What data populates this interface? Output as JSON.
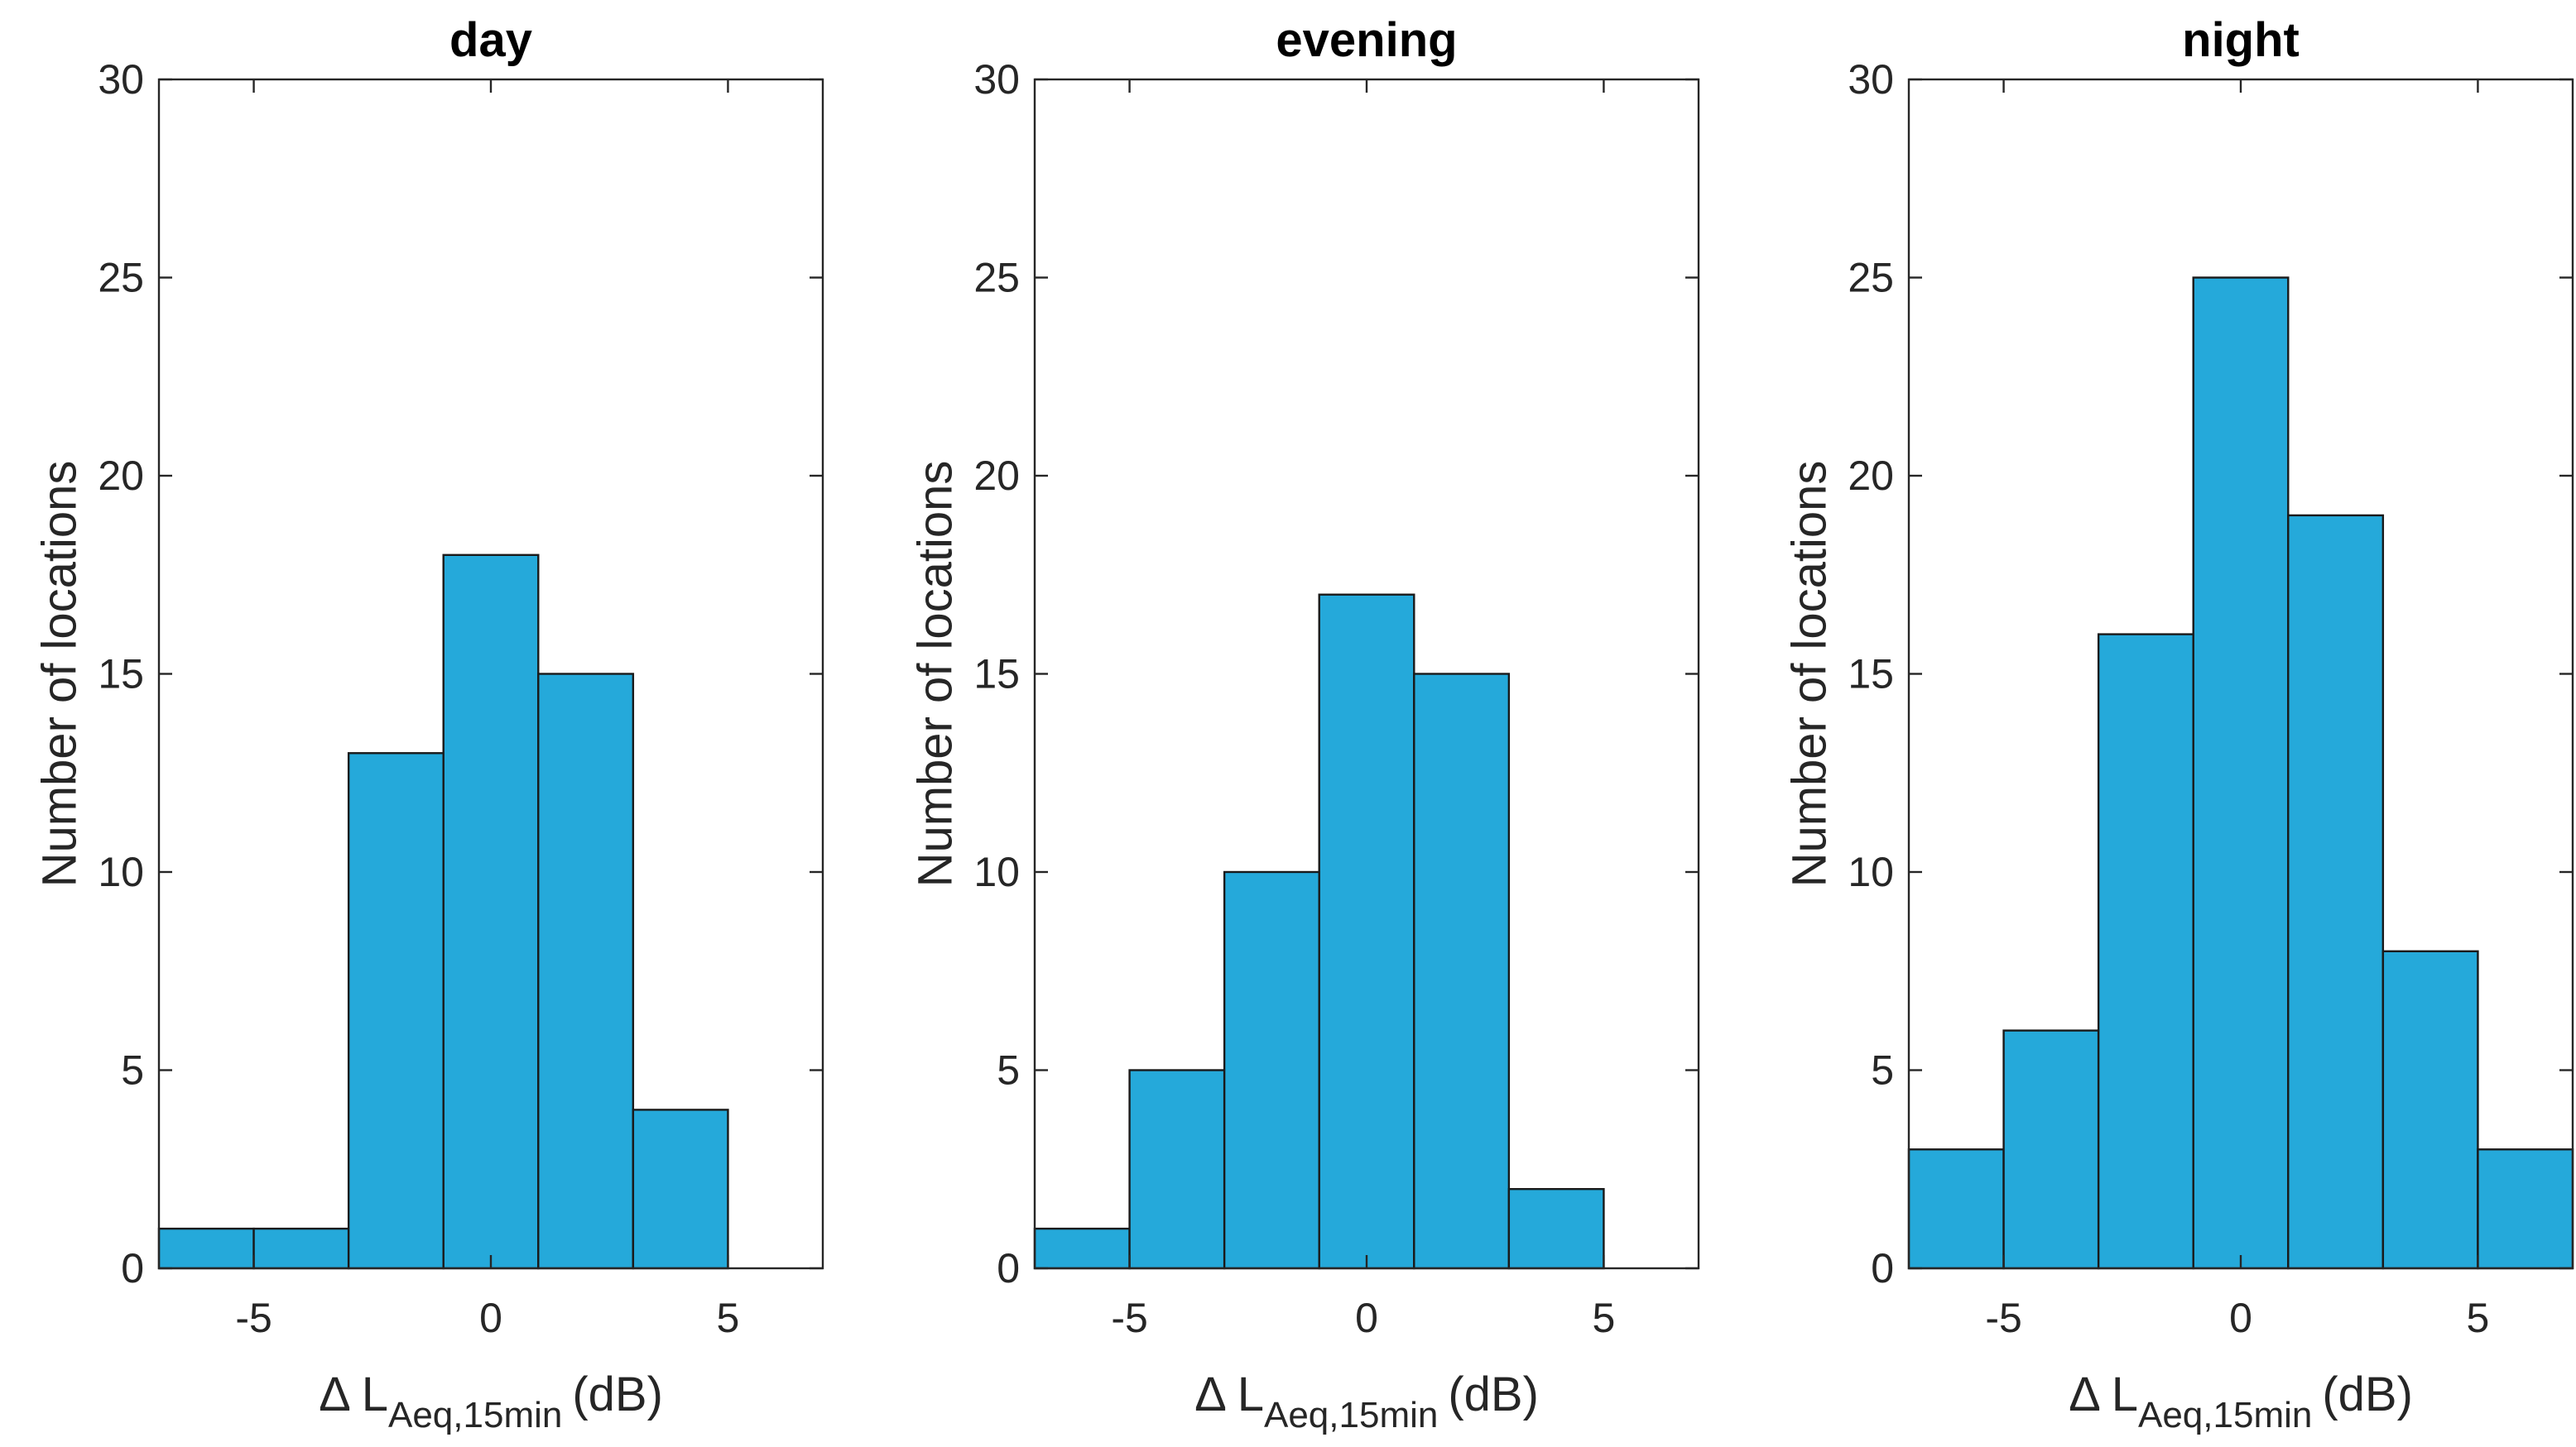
{
  "chart_data": [
    {
      "type": "bar",
      "title": "day",
      "bin_edges": [
        -7,
        -5,
        -3,
        -1,
        1,
        3,
        5,
        7
      ],
      "values": [
        1,
        1,
        13,
        18,
        15,
        4,
        0
      ],
      "xlim": [
        -7,
        7
      ],
      "ylim": [
        0,
        30
      ],
      "xticks": [
        -5,
        0,
        5
      ],
      "yticks": [
        0,
        5,
        10,
        15,
        20,
        25,
        30
      ],
      "xlabel": "Δ L",
      "xlabel_sub": "Aeq,15min",
      "xlabel_unit": "(dB)",
      "ylabel": "Number of locations",
      "bar_color": "#25A9DA"
    },
    {
      "type": "bar",
      "title": "evening",
      "bin_edges": [
        -7,
        -5,
        -3,
        -1,
        1,
        3,
        5,
        7
      ],
      "values": [
        1,
        5,
        10,
        17,
        15,
        2,
        0
      ],
      "xlim": [
        -7,
        7
      ],
      "ylim": [
        0,
        30
      ],
      "xticks": [
        -5,
        0,
        5
      ],
      "yticks": [
        0,
        5,
        10,
        15,
        20,
        25,
        30
      ],
      "xlabel": "Δ L",
      "xlabel_sub": "Aeq,15min",
      "xlabel_unit": "(dB)",
      "ylabel": "Number of locations",
      "bar_color": "#25A9DA"
    },
    {
      "type": "bar",
      "title": "night",
      "bin_edges": [
        -7,
        -5,
        -3,
        -1,
        1,
        3,
        5,
        7
      ],
      "values": [
        3,
        6,
        16,
        25,
        19,
        8,
        3
      ],
      "xlim": [
        -7,
        7
      ],
      "ylim": [
        0,
        30
      ],
      "xticks": [
        -5,
        0,
        5
      ],
      "yticks": [
        0,
        5,
        10,
        15,
        20,
        25,
        30
      ],
      "xlabel": "Δ L",
      "xlabel_sub": "Aeq,15min",
      "xlabel_unit": "(dB)",
      "ylabel": "Number of locations",
      "bar_color": "#25A9DA"
    }
  ]
}
